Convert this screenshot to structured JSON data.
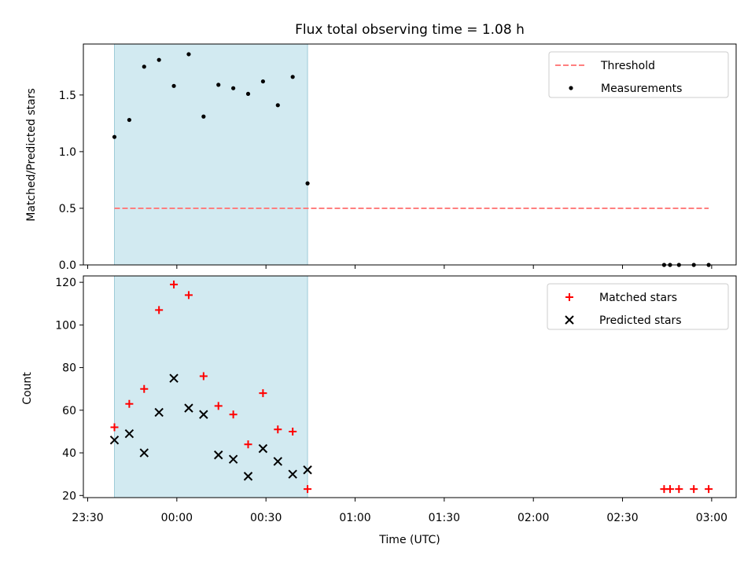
{
  "figure": {
    "title": "Flux total observing time = 1.08 h",
    "xlabel": "Time (UTC)",
    "xtick_labels": [
      "23:30",
      "00:00",
      "00:30",
      "01:00",
      "01:30",
      "02:00",
      "02:30",
      "03:00"
    ],
    "shaded_color": "#add8e6"
  },
  "chart_data": [
    {
      "type": "scatter",
      "ylabel": "Matched/Predicted stars",
      "ylim": [
        0,
        1.95
      ],
      "yticks": [
        "0.0",
        "0.5",
        "1.0",
        "1.5"
      ],
      "shaded_interval": {
        "start": "23:39",
        "end": "00:44"
      },
      "threshold": {
        "name": "Threshold",
        "value": 0.5,
        "start": "23:39",
        "end": "02:59",
        "color": "#ff7f7f"
      },
      "legend": {
        "loc": "upper right",
        "entries": [
          "Threshold",
          "Measurements"
        ]
      },
      "series": [
        {
          "name": "Measurements",
          "color": "#000000",
          "x": [
            "23:39",
            "23:44",
            "23:49",
            "23:54",
            "23:59",
            "00:04",
            "00:09",
            "00:14",
            "00:19",
            "00:24",
            "00:29",
            "00:34",
            "00:39",
            "00:44",
            "02:44",
            "02:46",
            "02:49",
            "02:54",
            "02:59"
          ],
          "y": [
            1.13,
            1.28,
            1.75,
            1.81,
            1.58,
            1.86,
            1.31,
            1.59,
            1.56,
            1.51,
            1.62,
            1.41,
            1.66,
            0.72,
            0,
            0,
            0,
            0,
            0
          ]
        }
      ]
    },
    {
      "type": "scatter",
      "ylabel": "Count",
      "ylim": [
        19,
        123
      ],
      "yticks": [
        "20",
        "40",
        "60",
        "80",
        "100",
        "120"
      ],
      "shaded_interval": {
        "start": "23:39",
        "end": "00:44"
      },
      "legend": {
        "loc": "upper right",
        "entries": [
          "Matched stars",
          "Predicted stars"
        ]
      },
      "series": [
        {
          "name": "Matched stars",
          "marker": "+",
          "color": "#ff0000",
          "x": [
            "23:39",
            "23:44",
            "23:49",
            "23:54",
            "23:59",
            "00:04",
            "00:09",
            "00:14",
            "00:19",
            "00:24",
            "00:29",
            "00:34",
            "00:39",
            "00:44",
            "02:44",
            "02:46",
            "02:49",
            "02:54",
            "02:59"
          ],
          "y": [
            52,
            63,
            70,
            107,
            119,
            114,
            76,
            62,
            58,
            44,
            68,
            51,
            50,
            23,
            23,
            23,
            23,
            23,
            23
          ]
        },
        {
          "name": "Predicted stars",
          "marker": "x",
          "color": "#000000",
          "x": [
            "23:39",
            "23:44",
            "23:49",
            "23:54",
            "23:59",
            "00:04",
            "00:09",
            "00:14",
            "00:19",
            "00:24",
            "00:29",
            "00:34",
            "00:39",
            "00:44"
          ],
          "y": [
            46,
            49,
            40,
            59,
            75,
            61,
            58,
            39,
            37,
            29,
            42,
            36,
            30,
            32
          ]
        }
      ]
    }
  ]
}
